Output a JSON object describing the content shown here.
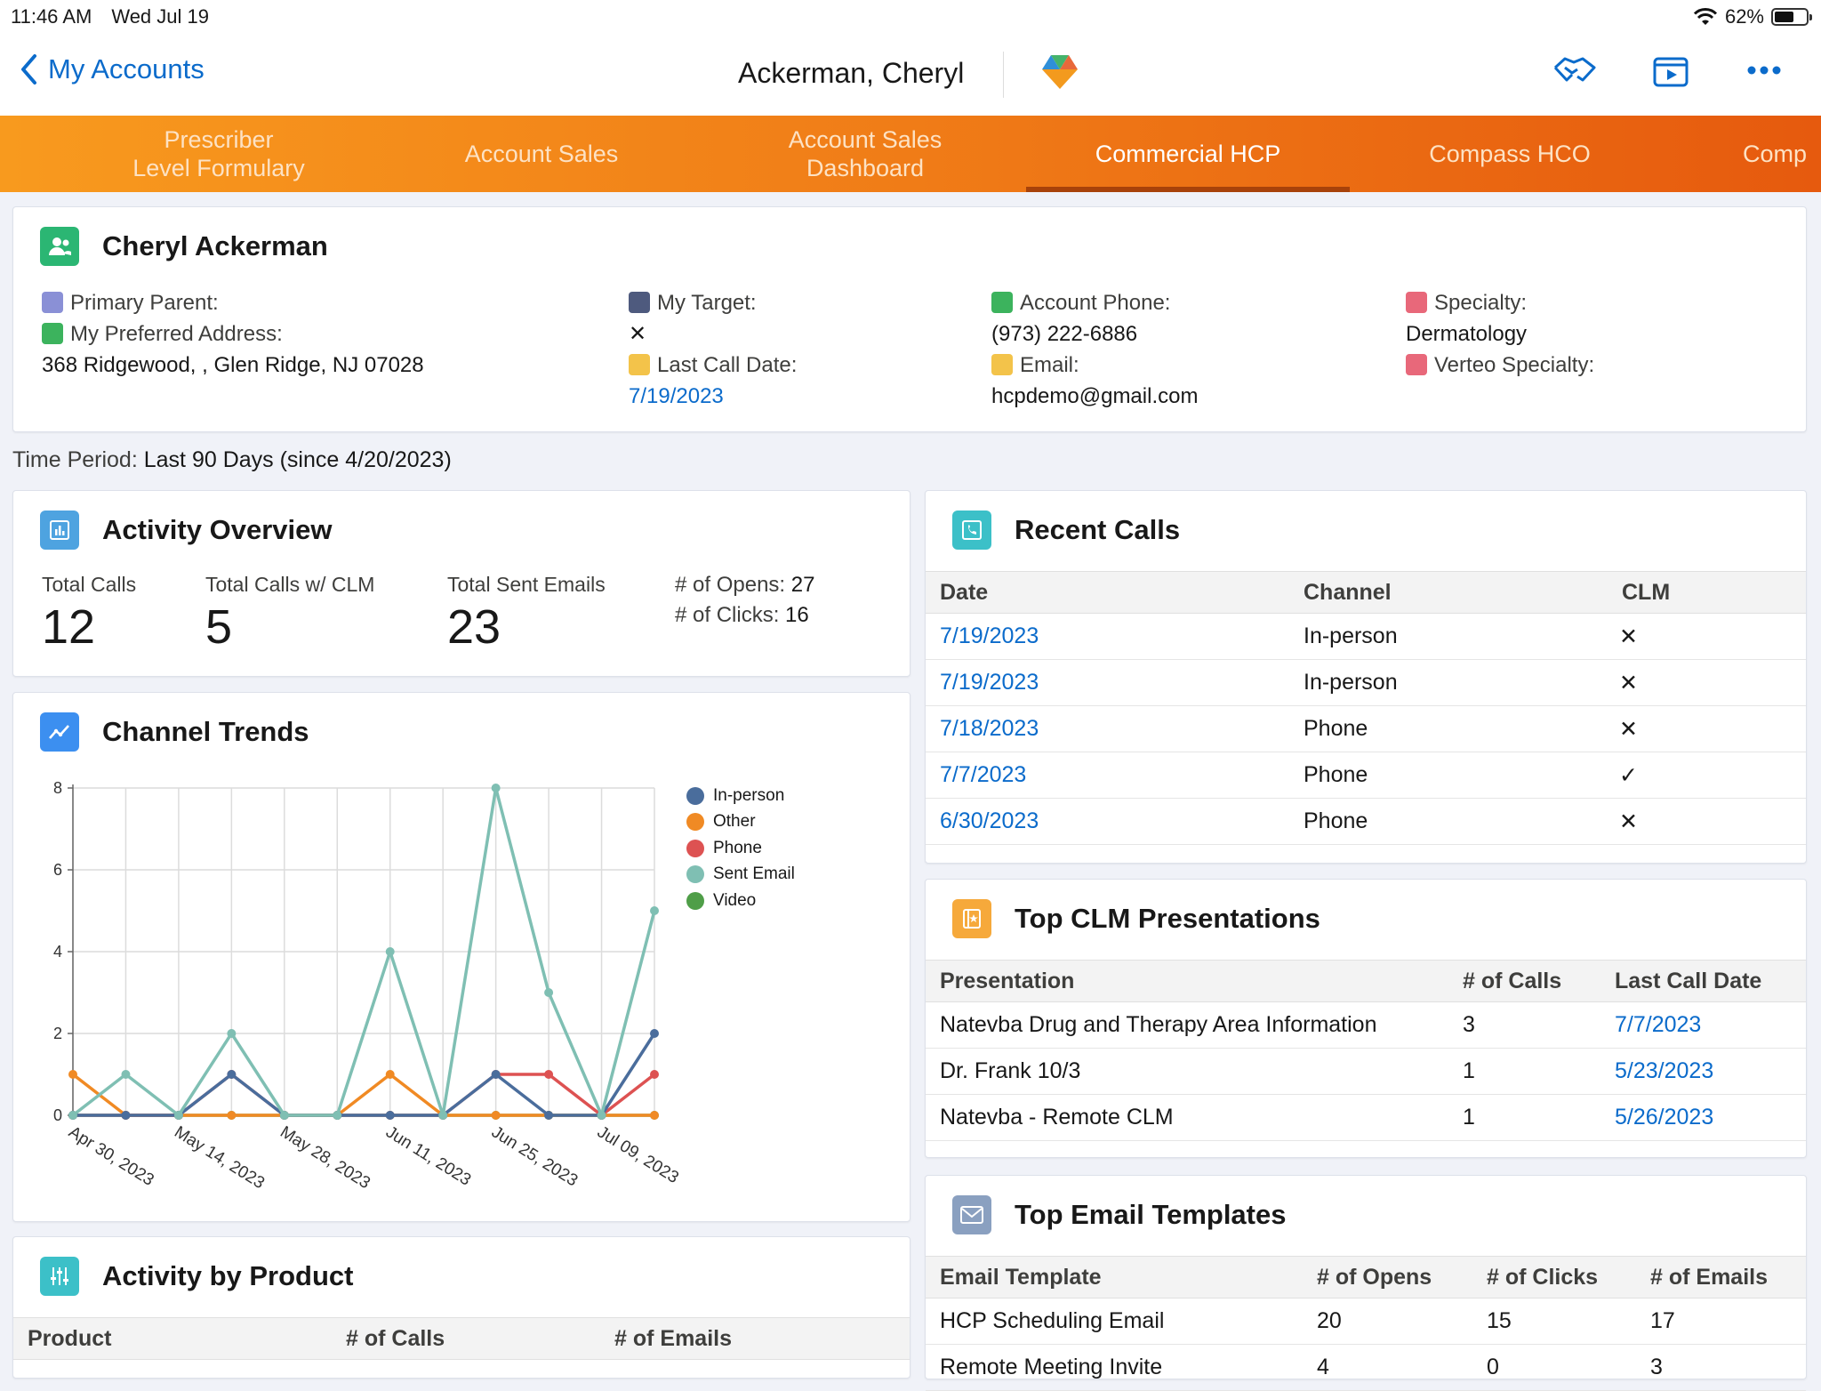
{
  "status_bar": {
    "time": "11:46 AM",
    "day": "Wed Jul 19",
    "battery": "62%",
    "battery_level": 0.62
  },
  "nav": {
    "back_label": "My Accounts",
    "title": "Ackerman, Cheryl"
  },
  "tabs": [
    {
      "label": "Prescriber\nLevel Formulary",
      "active": false
    },
    {
      "label": "Account Sales",
      "active": false
    },
    {
      "label": "Account Sales\nDashboard",
      "active": false
    },
    {
      "label": "Commercial HCP",
      "active": true
    },
    {
      "label": "Compass HCO",
      "active": false
    },
    {
      "label": "Comp",
      "active": false
    }
  ],
  "profile": {
    "name": "Cheryl Ackerman",
    "primary_parent_label": "Primary Parent:",
    "preferred_address_label": "My Preferred Address:",
    "address": "368 Ridgewood, , Glen Ridge, NJ 07028",
    "my_target_label": "My Target:",
    "my_target_value": "✕",
    "last_call_date_label": "Last Call Date:",
    "last_call_date": "7/19/2023",
    "account_phone_label": "Account Phone:",
    "account_phone": "(973) 222-6886",
    "email_label": "Email:",
    "email": "hcpdemo@gmail.com",
    "specialty_label": "Specialty:",
    "specialty": "Dermatology",
    "verteo_specialty_label": "Verteo Specialty:"
  },
  "time_period": {
    "label": "Time Period:",
    "value": "Last 90 Days (since 4/20/2023)"
  },
  "activity_overview": {
    "title": "Activity Overview",
    "total_calls_label": "Total Calls",
    "total_calls": "12",
    "total_calls_clm_label": "Total Calls w/ CLM",
    "total_calls_clm": "5",
    "total_sent_emails_label": "Total Sent Emails",
    "total_sent_emails": "23",
    "opens_label": "# of Opens:",
    "opens": "27",
    "clicks_label": "# of Clicks:",
    "clicks": "16"
  },
  "channel_trends": {
    "title": "Channel Trends"
  },
  "chart_data": {
    "type": "line",
    "x": [
      "Apr 30, 2023",
      "May 07, 2023",
      "May 14, 2023",
      "May 21, 2023",
      "May 28, 2023",
      "Jun 04, 2023",
      "Jun 11, 2023",
      "Jun 18, 2023",
      "Jun 25, 2023",
      "Jul 02, 2023",
      "Jul 09, 2023",
      "Jul 16, 2023"
    ],
    "x_tick_labels": [
      "Apr 30, 2023",
      "May 14, 2023",
      "May 28, 2023",
      "Jun 11, 2023",
      "Jun 25, 2023",
      "Jul 09, 2023"
    ],
    "y_ticks": [
      "0",
      "2",
      "4",
      "6",
      "8"
    ],
    "ylim": [
      0,
      8
    ],
    "grid": true,
    "legend_position": "right",
    "series": [
      {
        "name": "In-person",
        "color": "#4a6d9c",
        "values": [
          0,
          0,
          0,
          1,
          0,
          0,
          0,
          0,
          1,
          0,
          0,
          2
        ]
      },
      {
        "name": "Other",
        "color": "#f08a24",
        "values": [
          1,
          0,
          0,
          0,
          0,
          0,
          1,
          0,
          0,
          0,
          0,
          0
        ]
      },
      {
        "name": "Phone",
        "color": "#dd5252",
        "values": [
          0,
          0,
          0,
          1,
          0,
          0,
          0,
          0,
          1,
          1,
          0,
          1
        ]
      },
      {
        "name": "Sent Email",
        "color": "#7fbfb3",
        "values": [
          0,
          1,
          0,
          2,
          0,
          0,
          4,
          0,
          8,
          3,
          0,
          5
        ]
      },
      {
        "name": "Video",
        "color": "#4f9e48",
        "values": [
          0,
          0,
          0,
          0,
          0,
          0,
          0,
          0,
          0,
          0,
          0,
          0
        ]
      }
    ]
  },
  "activity_by_product": {
    "title": "Activity by Product",
    "columns": [
      "Product",
      "# of Calls",
      "# of Emails"
    ]
  },
  "recent_calls": {
    "title": "Recent Calls",
    "columns": [
      "Date",
      "Channel",
      "CLM"
    ],
    "rows": [
      {
        "date": "7/19/2023",
        "channel": "In-person",
        "clm": "✕"
      },
      {
        "date": "7/19/2023",
        "channel": "In-person",
        "clm": "✕"
      },
      {
        "date": "7/18/2023",
        "channel": "Phone",
        "clm": "✕"
      },
      {
        "date": "7/7/2023",
        "channel": "Phone",
        "clm": "✓"
      },
      {
        "date": "6/30/2023",
        "channel": "Phone",
        "clm": "✕"
      }
    ]
  },
  "top_clm": {
    "title": "Top CLM Presentations",
    "columns": [
      "Presentation",
      "# of Calls",
      "Last Call Date"
    ],
    "rows": [
      {
        "presentation": "Natevba Drug and Therapy Area Information",
        "calls": "3",
        "date": "7/7/2023"
      },
      {
        "presentation": "Dr. Frank 10/3",
        "calls": "1",
        "date": "5/23/2023"
      },
      {
        "presentation": "Natevba - Remote CLM",
        "calls": "1",
        "date": "5/26/2023"
      }
    ]
  },
  "top_email": {
    "title": "Top Email Templates",
    "columns": [
      "Email Template",
      "# of Opens",
      "# of Clicks",
      "# of Emails"
    ],
    "rows": [
      {
        "template": "HCP Scheduling Email",
        "opens": "20",
        "clicks": "15",
        "emails": "17"
      },
      {
        "template": "Remote Meeting Invite",
        "opens": "4",
        "clicks": "0",
        "emails": "3"
      }
    ]
  }
}
